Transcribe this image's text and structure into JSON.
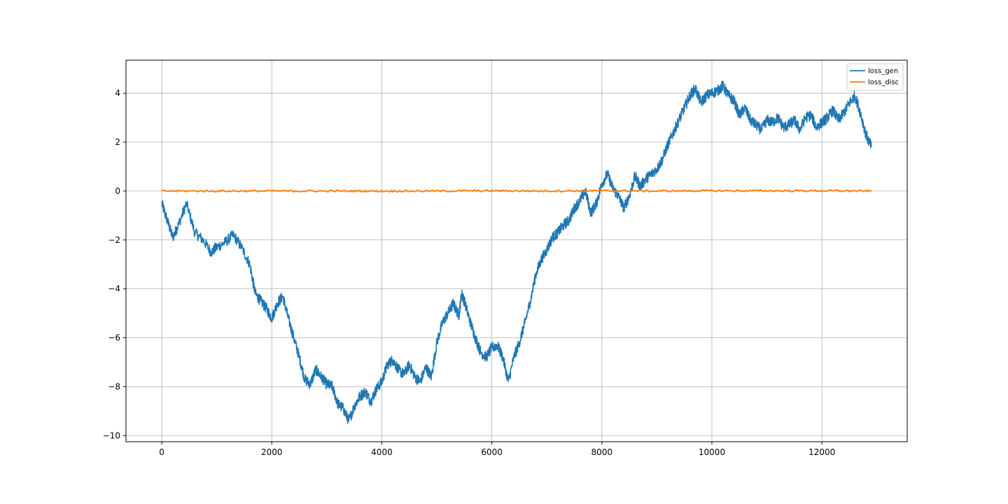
{
  "chart_data": {
    "type": "line",
    "title": "",
    "xlabel": "",
    "ylabel": "",
    "xlim": [
      -650,
      13550
    ],
    "ylim": [
      -10.25,
      5.35
    ],
    "xticks": [
      0,
      2000,
      4000,
      6000,
      8000,
      10000,
      12000
    ],
    "xtick_labels": [
      "0",
      "2000",
      "4000",
      "6000",
      "8000",
      "10000",
      "12000"
    ],
    "yticks": [
      -10,
      -8,
      -6,
      -4,
      -2,
      0,
      2,
      4
    ],
    "ytick_labels": [
      "−10",
      "−8",
      "−6",
      "−4",
      "−2",
      "0",
      "2",
      "4"
    ],
    "grid": true,
    "legend_position": "top-right",
    "series": [
      {
        "name": "loss_gen",
        "color": "#1f77b4",
        "x": [
          0,
          100,
          200,
          300,
          450,
          600,
          750,
          900,
          1000,
          1150,
          1300,
          1450,
          1600,
          1700,
          1800,
          1900,
          2000,
          2100,
          2200,
          2300,
          2400,
          2500,
          2600,
          2700,
          2800,
          2900,
          3000,
          3100,
          3200,
          3300,
          3400,
          3500,
          3600,
          3700,
          3800,
          3900,
          4000,
          4100,
          4200,
          4300,
          4400,
          4500,
          4600,
          4700,
          4800,
          4900,
          5000,
          5100,
          5200,
          5300,
          5400,
          5450,
          5500,
          5600,
          5700,
          5800,
          5900,
          6000,
          6100,
          6200,
          6300,
          6400,
          6500,
          6600,
          6700,
          6800,
          6900,
          7000,
          7100,
          7200,
          7300,
          7400,
          7500,
          7600,
          7700,
          7800,
          7900,
          8000,
          8100,
          8200,
          8300,
          8400,
          8500,
          8600,
          8700,
          8800,
          8900,
          9000,
          9100,
          9200,
          9300,
          9400,
          9500,
          9600,
          9700,
          9800,
          9900,
          10000,
          10100,
          10200,
          10300,
          10400,
          10500,
          10600,
          10700,
          10800,
          10900,
          11000,
          11100,
          11200,
          11300,
          11400,
          11500,
          11600,
          11700,
          11800,
          11900,
          12000,
          12100,
          12200,
          12300,
          12400,
          12500,
          12600,
          12700,
          12800,
          12900
        ],
        "y": [
          -0.5,
          -1.2,
          -1.9,
          -1.4,
          -0.5,
          -1.7,
          -2.0,
          -2.5,
          -2.3,
          -2.1,
          -1.8,
          -2.3,
          -3.0,
          -4.2,
          -4.5,
          -4.8,
          -5.2,
          -4.6,
          -4.3,
          -5.2,
          -6.0,
          -6.8,
          -7.7,
          -7.9,
          -7.3,
          -7.6,
          -7.9,
          -8.0,
          -8.7,
          -8.9,
          -9.4,
          -8.8,
          -8.4,
          -8.2,
          -8.6,
          -8.1,
          -7.8,
          -7.1,
          -6.9,
          -7.3,
          -7.5,
          -7.1,
          -7.6,
          -7.8,
          -7.2,
          -7.6,
          -6.2,
          -5.4,
          -5.0,
          -4.6,
          -5.1,
          -4.2,
          -4.5,
          -5.3,
          -6.0,
          -6.6,
          -6.8,
          -6.4,
          -6.3,
          -6.8,
          -7.8,
          -6.8,
          -6.2,
          -5.4,
          -4.5,
          -3.4,
          -2.8,
          -2.4,
          -1.9,
          -1.7,
          -1.4,
          -1.2,
          -0.7,
          -0.4,
          0.0,
          -0.9,
          -0.5,
          0.3,
          0.7,
          0.1,
          -0.2,
          -0.7,
          -0.2,
          0.6,
          0.2,
          0.5,
          0.7,
          0.9,
          1.3,
          1.9,
          2.4,
          2.9,
          3.4,
          3.9,
          4.2,
          3.6,
          3.9,
          4.0,
          4.1,
          4.3,
          3.9,
          3.7,
          3.1,
          3.4,
          2.9,
          2.7,
          2.5,
          2.9,
          2.8,
          3.0,
          2.6,
          2.7,
          2.9,
          2.5,
          3.0,
          3.1,
          2.6,
          2.8,
          3.0,
          3.3,
          2.9,
          3.2,
          3.6,
          3.9,
          3.2,
          2.3,
          1.8
        ]
      },
      {
        "name": "loss_disc",
        "color": "#ff7f0e",
        "x": [
          0,
          1000,
          2000,
          3000,
          4000,
          5000,
          6000,
          7000,
          8000,
          9000,
          10000,
          11000,
          12000,
          12900
        ],
        "y": [
          0.0,
          0.0,
          0.0,
          0.0,
          0.0,
          0.0,
          0.01,
          0.0,
          0.01,
          0.0,
          0.01,
          0.01,
          0.01,
          0.0
        ]
      }
    ]
  }
}
